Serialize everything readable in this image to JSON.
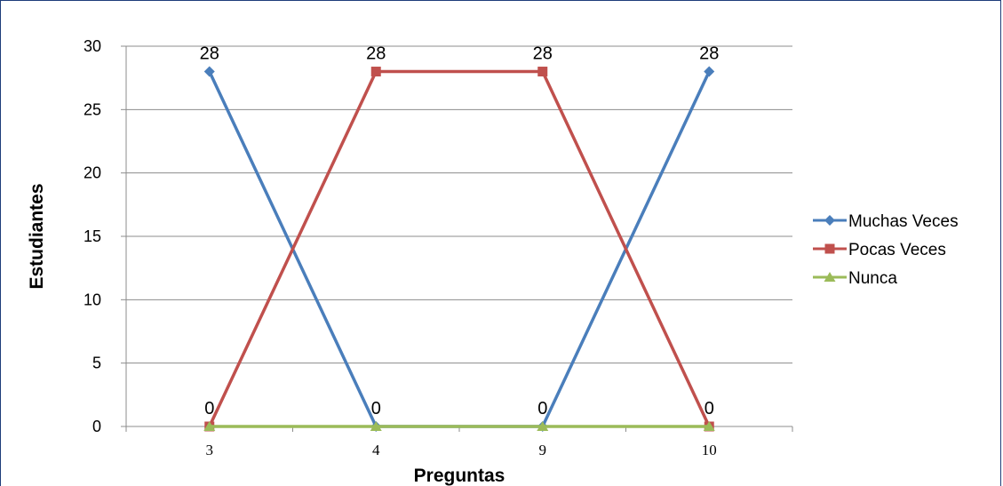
{
  "chart_data": {
    "type": "line",
    "title": "",
    "xlabel": "Preguntas",
    "ylabel": "Estudiantes",
    "categories": [
      "3",
      "4",
      "9",
      "10"
    ],
    "ylim": [
      0,
      30
    ],
    "yticks": [
      "0",
      "5",
      "10",
      "15",
      "20",
      "25",
      "30"
    ],
    "grid": true,
    "legend_position": "right",
    "series": [
      {
        "name": "Muchas Veces",
        "values": [
          28,
          0,
          0,
          28
        ],
        "color": "#4a7ebb",
        "marker": "diamond"
      },
      {
        "name": "Pocas Veces",
        "values": [
          0,
          28,
          28,
          0
        ],
        "color": "#c0504d",
        "marker": "square"
      },
      {
        "name": "Nunca",
        "values": [
          0,
          0,
          0,
          0
        ],
        "color": "#9bbb59",
        "marker": "triangle"
      }
    ],
    "data_labels": [
      {
        "category": "3",
        "value": 28,
        "text": "28"
      },
      {
        "category": "4",
        "value": 28,
        "text": "28"
      },
      {
        "category": "9",
        "value": 28,
        "text": "28"
      },
      {
        "category": "10",
        "value": 28,
        "text": "28"
      },
      {
        "category": "3",
        "value": 0,
        "text": "0"
      },
      {
        "category": "4",
        "value": 0,
        "text": "0"
      },
      {
        "category": "9",
        "value": 0,
        "text": "0"
      },
      {
        "category": "10",
        "value": 0,
        "text": "0"
      }
    ]
  }
}
